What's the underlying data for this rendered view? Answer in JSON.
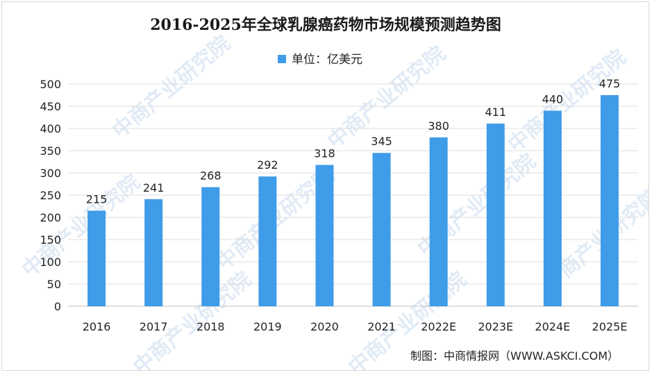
{
  "chart_data": {
    "type": "bar",
    "title": "2016-2025年全球乳腺癌药物市场规模预测趋势图",
    "legend": "单位：亿美元",
    "legend_position": "top-center",
    "categories": [
      "2016",
      "2017",
      "2018",
      "2019",
      "2020",
      "2021",
      "2022E",
      "2023E",
      "2024E",
      "2025E"
    ],
    "values": [
      215,
      241,
      268,
      292,
      318,
      345,
      380,
      411,
      440,
      475
    ],
    "y_ticks": [
      "0",
      "50",
      "100",
      "150",
      "200",
      "250",
      "300",
      "350",
      "400",
      "450",
      "500"
    ],
    "ylim": [
      0,
      500
    ],
    "xlabel": "",
    "ylabel": "",
    "grid": true,
    "bar_color": "#3f9ce8",
    "source": "制图：中商情报网（WWW.ASKCI.COM）"
  },
  "watermark": {
    "text": "中商产业研究院"
  }
}
